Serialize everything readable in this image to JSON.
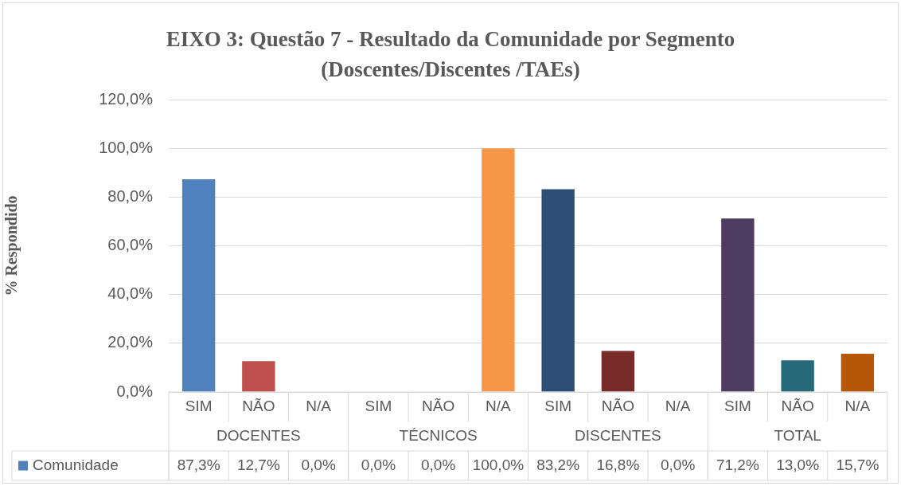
{
  "chart_data": {
    "type": "bar",
    "title": "EIXO 3:  Questão 7 - Resultado da Comunidade por Segmento (Doscentes/Discentes /TAEs)",
    "ylabel": "% Respondido",
    "categories": [
      "SIM",
      "NÃO",
      "N/A",
      "SIM",
      "NÃO",
      "N/A",
      "SIM",
      "NÃO",
      "N/A",
      "SIM",
      "NÃO",
      "N/A"
    ],
    "annotations": [
      "DOCENTES",
      "TÉCNICOS",
      "DISCENTES",
      "TOTAL"
    ],
    "series": [
      {
        "name": "Comunidade",
        "color": "#4f81bd",
        "colors": [
          "#4f81bd",
          "#c0504d",
          "#9bbb59",
          "#8064a2",
          "#4bacc6",
          "#f79646",
          "#2c4d75",
          "#772c2a",
          "#5f7530",
          "#4d3b62",
          "#276a7c",
          "#b65708"
        ],
        "values": [
          87.3,
          12.7,
          0.0,
          0.0,
          0.0,
          100.0,
          83.2,
          16.8,
          0.0,
          71.2,
          13.0,
          15.7
        ],
        "value_labels": [
          "87,3%",
          "12,7%",
          "0,0%",
          "0,0%",
          "0,0%",
          "100,0%",
          "83,2%",
          "16,8%",
          "0,0%",
          "71,2%",
          "13,0%",
          "15,7%"
        ]
      }
    ],
    "ylim": [
      0,
      120
    ],
    "yticks": [
      {
        "value": 0,
        "label": "0,0%"
      },
      {
        "value": 20,
        "label": "20,0%"
      },
      {
        "value": 40,
        "label": "40,0%"
      },
      {
        "value": 60,
        "label": "60,0%"
      },
      {
        "value": 80,
        "label": "80,0%"
      },
      {
        "value": 100,
        "label": "100,0%"
      },
      {
        "value": 120,
        "label": "120,0%"
      }
    ],
    "grid": "y",
    "legend": "bottom left"
  }
}
